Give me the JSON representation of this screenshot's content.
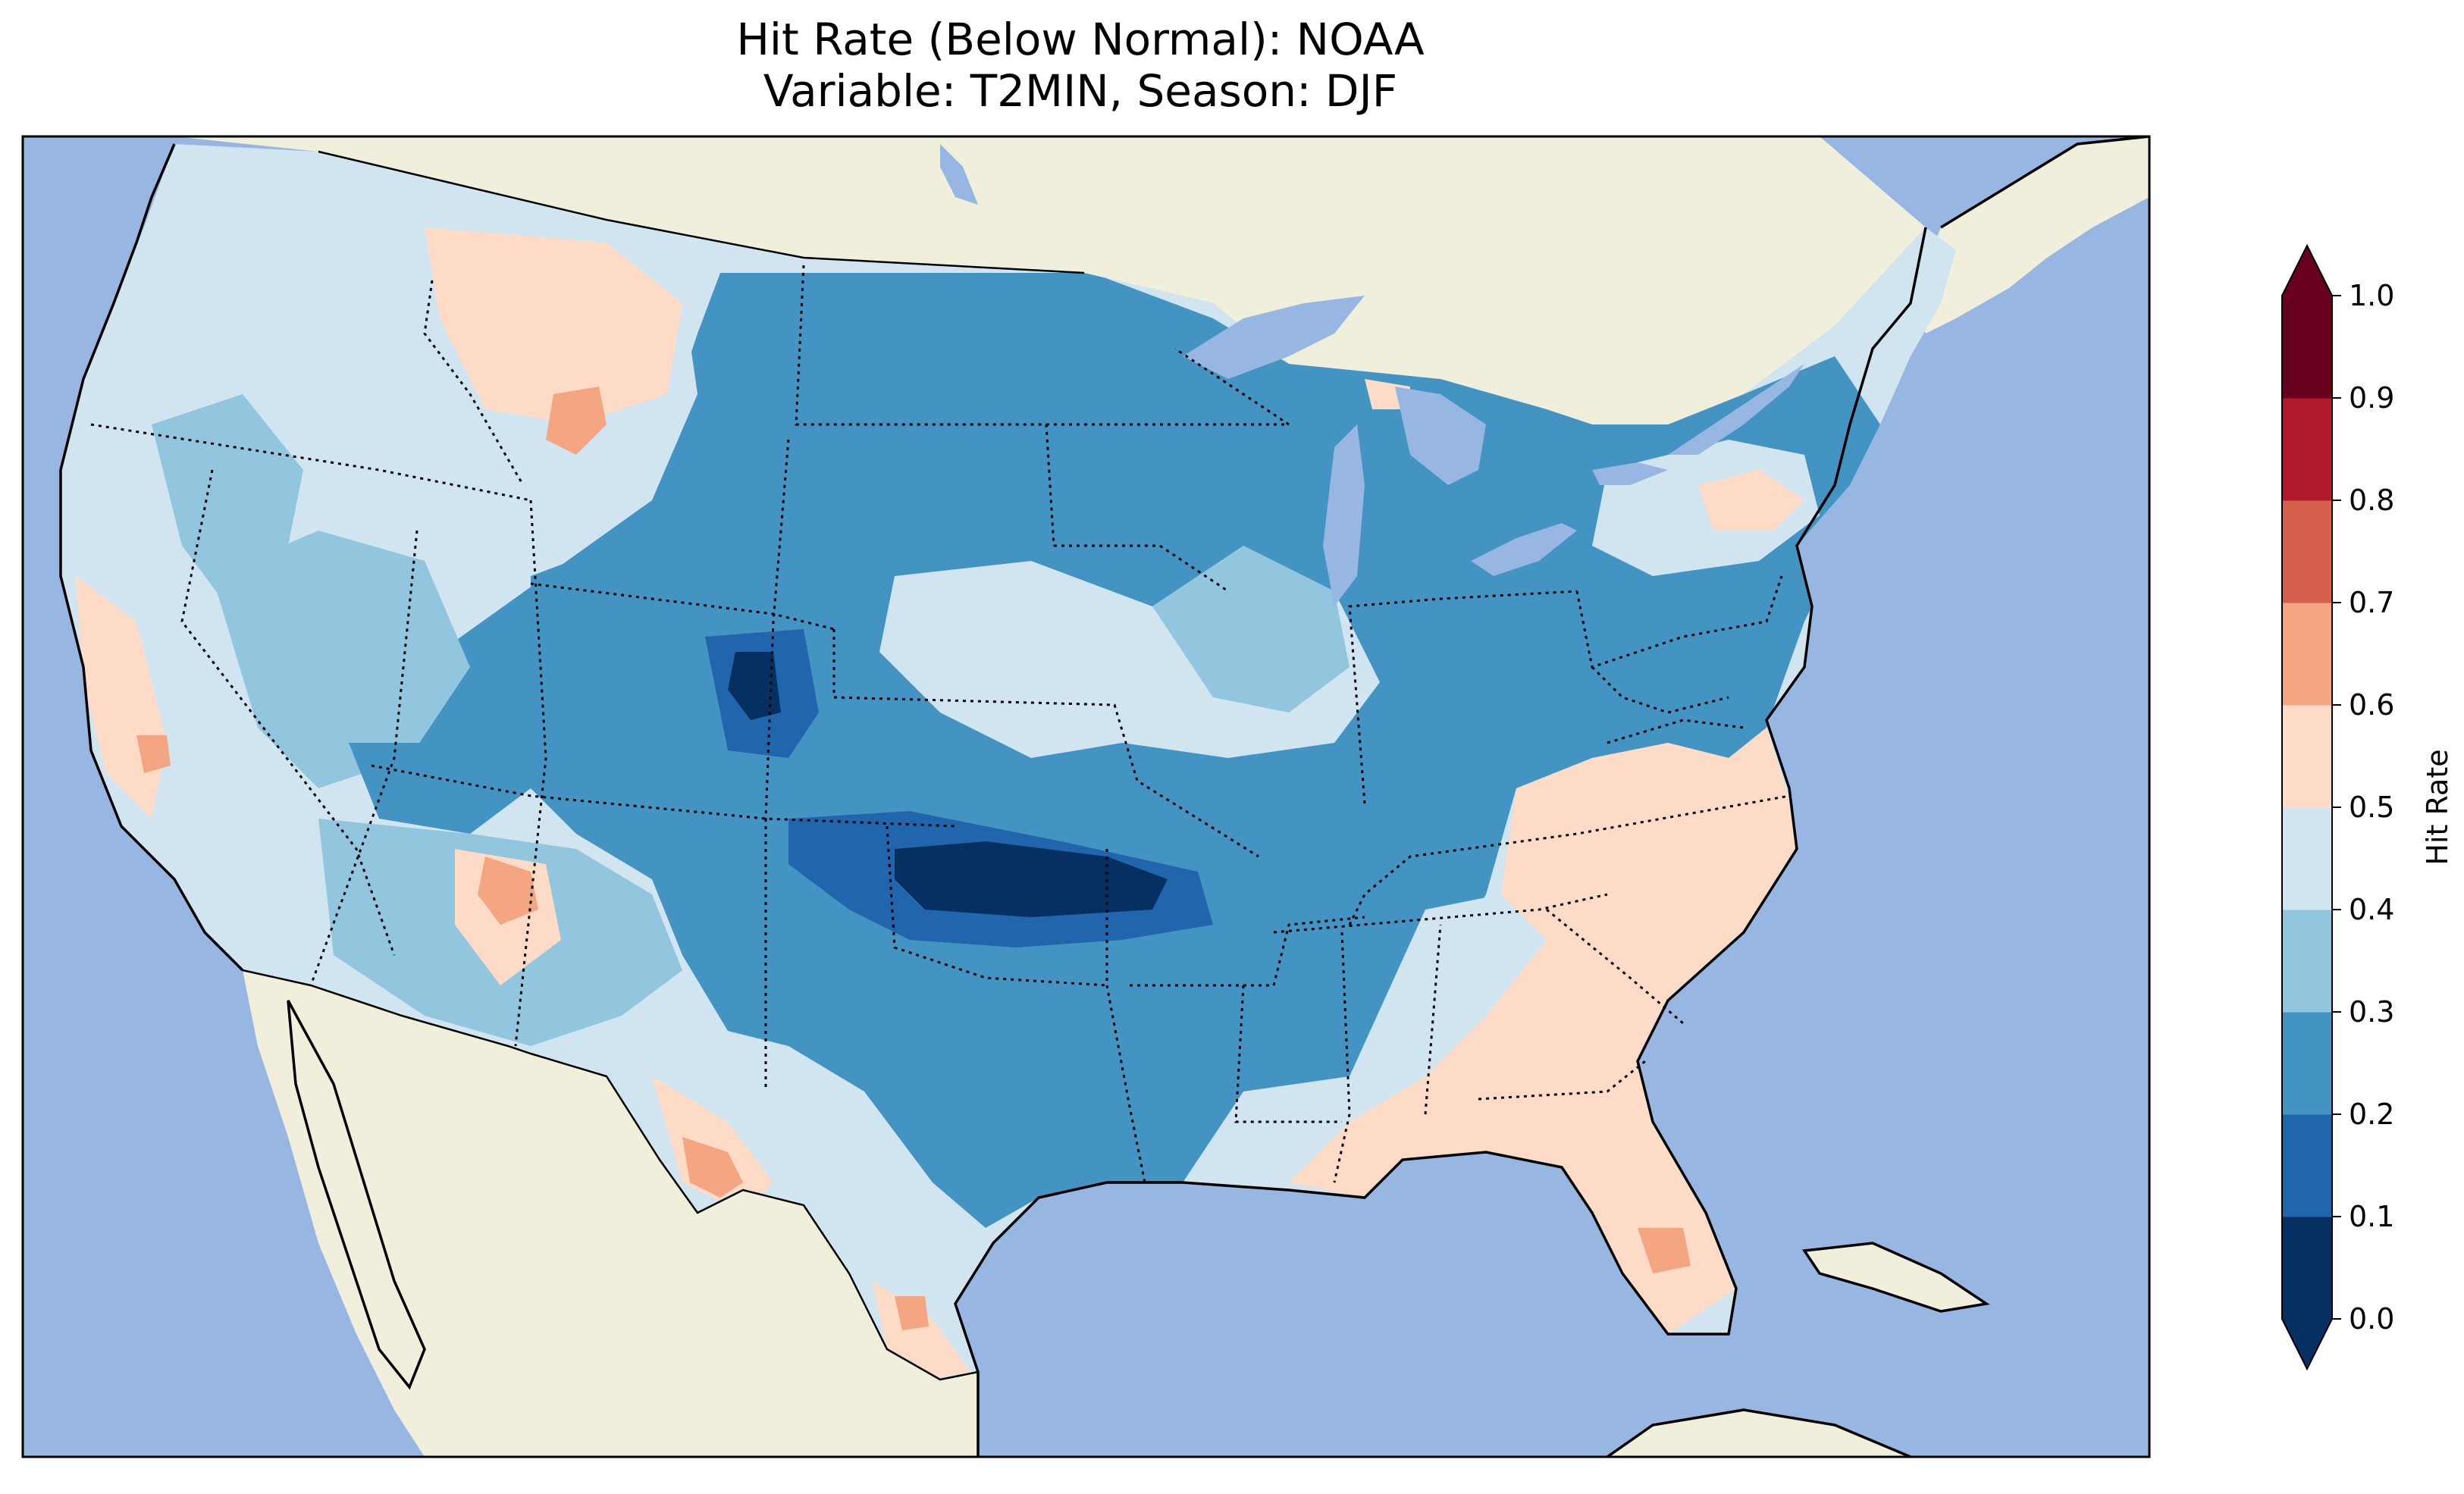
{
  "title": {
    "line1": "Hit Rate (Below Normal): NOAA",
    "line2": "Variable: T2MIN, Season: DJF"
  },
  "colors": {
    "ocean": "#97b6e1",
    "land": "#efefdb",
    "border": "#000000"
  },
  "colorbar": {
    "label": "Hit Rate",
    "extend": "both",
    "ticks": [
      "0.0",
      "0.1",
      "0.2",
      "0.3",
      "0.4",
      "0.5",
      "0.6",
      "0.7",
      "0.8",
      "0.9",
      "1.0"
    ],
    "bins": [
      {
        "range": [
          0.0,
          0.1
        ],
        "color": "#053061"
      },
      {
        "range": [
          0.1,
          0.2
        ],
        "color": "#2166ac"
      },
      {
        "range": [
          0.2,
          0.3
        ],
        "color": "#4393c3"
      },
      {
        "range": [
          0.3,
          0.4
        ],
        "color": "#92c5de"
      },
      {
        "range": [
          0.4,
          0.5
        ],
        "color": "#d1e5f0"
      },
      {
        "range": [
          0.5,
          0.6
        ],
        "color": "#fddbc7"
      },
      {
        "range": [
          0.6,
          0.7
        ],
        "color": "#f4a582"
      },
      {
        "range": [
          0.7,
          0.8
        ],
        "color": "#d6604d"
      },
      {
        "range": [
          0.8,
          0.9
        ],
        "color": "#b2182b"
      },
      {
        "range": [
          0.9,
          1.0
        ],
        "color": "#67001f"
      }
    ],
    "under_color": "#053061",
    "over_color": "#67001f"
  },
  "map_regions": [
    {
      "name": "pacific-northwest",
      "value_bin": 0.45
    },
    {
      "name": "california-coast",
      "value_bin": 0.55
    },
    {
      "name": "great-basin",
      "value_bin": 0.35
    },
    {
      "name": "northern-rockies",
      "value_bin": 0.55
    },
    {
      "name": "central-rockies",
      "value_bin": 0.25
    },
    {
      "name": "colorado-core",
      "value_bin": 0.05
    },
    {
      "name": "southwest",
      "value_bin": 0.45
    },
    {
      "name": "northern-plains",
      "value_bin": 0.25
    },
    {
      "name": "southern-plains",
      "value_bin": 0.25
    },
    {
      "name": "oklahoma-core",
      "value_bin": 0.05
    },
    {
      "name": "midwest",
      "value_bin": 0.25
    },
    {
      "name": "central-midwest",
      "value_bin": 0.45
    },
    {
      "name": "southeast",
      "value_bin": 0.55
    },
    {
      "name": "florida-hotspot",
      "value_bin": 0.65
    },
    {
      "name": "northeast",
      "value_bin": 0.25
    },
    {
      "name": "west-texas-hotspot",
      "value_bin": 0.65
    },
    {
      "name": "idaho-hotspot",
      "value_bin": 0.65
    }
  ]
}
